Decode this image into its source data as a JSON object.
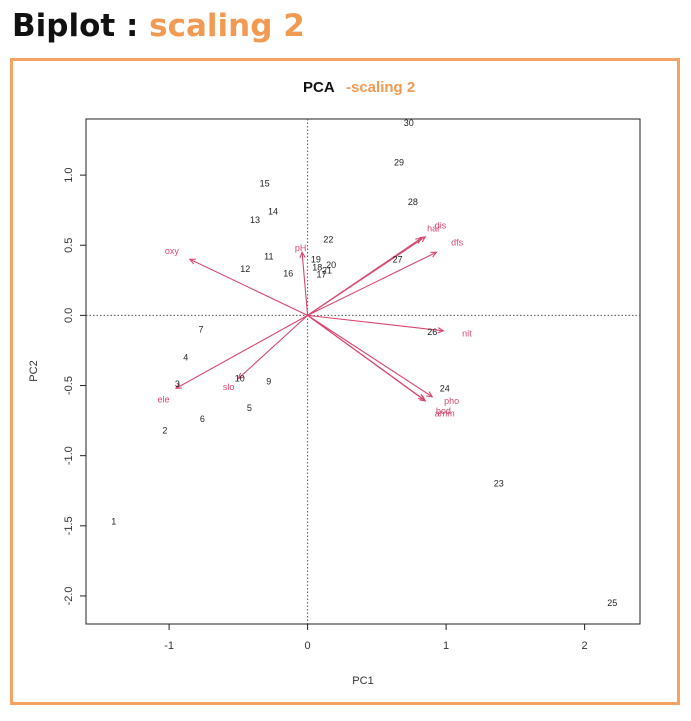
{
  "slide": {
    "title_main": "Biplot : ",
    "title_accent": "scaling 2"
  },
  "colors": {
    "accent": "#f39a52",
    "frame": "#f5a262",
    "arrows": "#d9476e",
    "text": "#111111"
  },
  "chart_data": {
    "type": "scatter",
    "title": "PCA",
    "title_accent": "-scaling 2",
    "xlabel": "PC1",
    "ylabel": "PC2",
    "xlim": [
      -1.6,
      2.4
    ],
    "ylim": [
      -2.2,
      1.4
    ],
    "xticks": [
      -1,
      0,
      1,
      2
    ],
    "yticks": [
      -2.0,
      -1.5,
      -1.0,
      -0.5,
      0.0,
      0.5,
      1.0
    ],
    "grid": false,
    "reference_lines": {
      "x": 0,
      "y": 0,
      "style": "dotted"
    },
    "points": [
      {
        "label": "1",
        "x": -1.4,
        "y": -1.47
      },
      {
        "label": "2",
        "x": -1.03,
        "y": -0.82
      },
      {
        "label": "3",
        "x": -0.94,
        "y": -0.49
      },
      {
        "label": "4",
        "x": -0.88,
        "y": -0.3
      },
      {
        "label": "5",
        "x": -0.42,
        "y": -0.66
      },
      {
        "label": "6",
        "x": -0.76,
        "y": -0.74
      },
      {
        "label": "7",
        "x": -0.77,
        "y": -0.1
      },
      {
        "label": "9",
        "x": -0.28,
        "y": -0.47
      },
      {
        "label": "10",
        "x": -0.49,
        "y": -0.45
      },
      {
        "label": "11",
        "x": -0.28,
        "y": 0.42
      },
      {
        "label": "12",
        "x": -0.45,
        "y": 0.33
      },
      {
        "label": "13",
        "x": -0.38,
        "y": 0.68
      },
      {
        "label": "14",
        "x": -0.25,
        "y": 0.74
      },
      {
        "label": "15",
        "x": -0.31,
        "y": 0.94
      },
      {
        "label": "16",
        "x": -0.14,
        "y": 0.3
      },
      {
        "label": "17",
        "x": 0.1,
        "y": 0.29
      },
      {
        "label": "18",
        "x": 0.07,
        "y": 0.34
      },
      {
        "label": "19",
        "x": 0.06,
        "y": 0.4
      },
      {
        "label": "20",
        "x": 0.17,
        "y": 0.36
      },
      {
        "label": "21",
        "x": 0.14,
        "y": 0.32
      },
      {
        "label": "22",
        "x": 0.15,
        "y": 0.54
      },
      {
        "label": "23",
        "x": 1.38,
        "y": -1.2
      },
      {
        "label": "24",
        "x": 0.99,
        "y": -0.52
      },
      {
        "label": "25",
        "x": 2.2,
        "y": -2.05
      },
      {
        "label": "26",
        "x": 0.9,
        "y": -0.12
      },
      {
        "label": "27",
        "x": 0.65,
        "y": 0.4
      },
      {
        "label": "28",
        "x": 0.76,
        "y": 0.81
      },
      {
        "label": "29",
        "x": 0.66,
        "y": 1.09
      },
      {
        "label": "30",
        "x": 0.73,
        "y": 1.37
      }
    ],
    "loadings": [
      {
        "name": "ele",
        "x": -0.95,
        "y": -0.52,
        "lx": -1.04,
        "ly": -0.6
      },
      {
        "name": "slo",
        "x": -0.5,
        "y": -0.45,
        "lx": -0.57,
        "ly": -0.51
      },
      {
        "name": "oxy",
        "x": -0.85,
        "y": 0.4,
        "lx": -0.98,
        "ly": 0.46
      },
      {
        "name": "pH",
        "x": -0.04,
        "y": 0.45,
        "lx": -0.05,
        "ly": 0.48
      },
      {
        "name": "har",
        "x": 0.82,
        "y": 0.55,
        "lx": 0.91,
        "ly": 0.62
      },
      {
        "name": "dis",
        "x": 0.85,
        "y": 0.56,
        "lx": 0.96,
        "ly": 0.64
      },
      {
        "name": "dfs",
        "x": 0.93,
        "y": 0.45,
        "lx": 1.08,
        "ly": 0.52
      },
      {
        "name": "nit",
        "x": 0.98,
        "y": -0.11,
        "lx": 1.15,
        "ly": -0.13
      },
      {
        "name": "pho",
        "x": 0.9,
        "y": -0.58,
        "lx": 1.04,
        "ly": -0.61
      },
      {
        "name": "amm",
        "x": 0.85,
        "y": -0.61,
        "lx": 0.99,
        "ly": -0.7
      },
      {
        "name": "bod",
        "x": 0.84,
        "y": -0.6,
        "lx": 0.98,
        "ly": -0.68
      }
    ]
  }
}
